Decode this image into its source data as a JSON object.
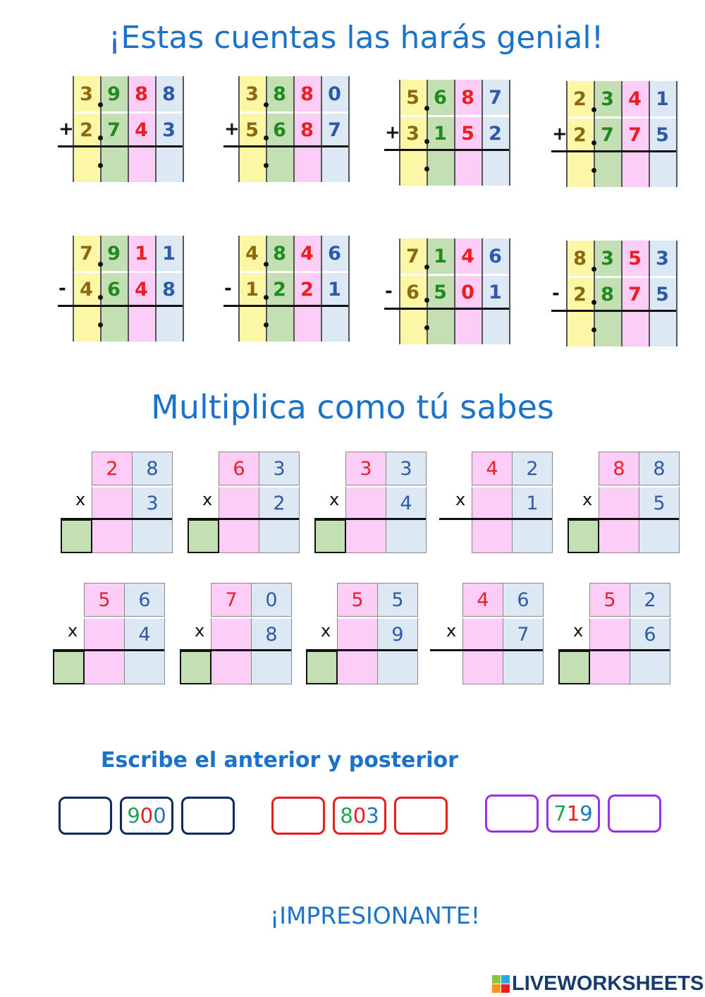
{
  "title": "¡Estas cuentas las harás genial!",
  "colors": {
    "col1_bg": "#fbf7a6",
    "col2_bg": "#c5dfb4",
    "col3_bg": "#fccdf6",
    "col4_bg": "#dde8f5",
    "col1_fg": "#8b6a0c",
    "col2_fg": "#1f8a1f",
    "col3_fg": "#ee1c24",
    "col4_fg": "#2d5aa8",
    "title": "#1a73c9"
  },
  "additions": [
    {
      "op": "+",
      "top": [
        "3",
        "9",
        "8",
        "8"
      ],
      "bottom": [
        "2",
        "7",
        "4",
        "3"
      ]
    },
    {
      "op": "+",
      "top": [
        "3",
        "8",
        "8",
        "0"
      ],
      "bottom": [
        "5",
        "6",
        "8",
        "7"
      ]
    },
    {
      "op": "+",
      "top": [
        "5",
        "6",
        "8",
        "7"
      ],
      "bottom": [
        "3",
        "1",
        "5",
        "2"
      ]
    },
    {
      "op": "+",
      "top": [
        "2",
        "3",
        "4",
        "1"
      ],
      "bottom": [
        "2",
        "7",
        "7",
        "5"
      ]
    },
    {
      "op": "-",
      "top": [
        "7",
        "9",
        "1",
        "1"
      ],
      "bottom": [
        "4",
        "6",
        "4",
        "8"
      ]
    },
    {
      "op": "-",
      "top": [
        "4",
        "8",
        "4",
        "6"
      ],
      "bottom": [
        "1",
        "2",
        "2",
        "1"
      ]
    },
    {
      "op": "-",
      "top": [
        "7",
        "1",
        "4",
        "6"
      ],
      "bottom": [
        "6",
        "5",
        "0",
        "1"
      ]
    },
    {
      "op": "-",
      "top": [
        "8",
        "3",
        "5",
        "3"
      ],
      "bottom": [
        "2",
        "8",
        "7",
        "5"
      ]
    }
  ],
  "mult_title": "Multiplica como tú sabes",
  "multiplications": [
    {
      "op": "x",
      "top": [
        "2",
        "8"
      ],
      "factor": "3",
      "carry_box": true
    },
    {
      "op": "x",
      "top": [
        "6",
        "3"
      ],
      "factor": "2",
      "carry_box": true
    },
    {
      "op": "x",
      "top": [
        "3",
        "3"
      ],
      "factor": "4",
      "carry_box": true
    },
    {
      "op": "x",
      "top": [
        "4",
        "2"
      ],
      "factor": "1",
      "carry_box": false
    },
    {
      "op": "x",
      "top": [
        "8",
        "8"
      ],
      "factor": "5",
      "carry_box": true
    },
    {
      "op": "x",
      "top": [
        "5",
        "6"
      ],
      "factor": "4",
      "carry_box": true
    },
    {
      "op": "x",
      "top": [
        "7",
        "0"
      ],
      "factor": "8",
      "carry_box": true
    },
    {
      "op": "x",
      "top": [
        "5",
        "5"
      ],
      "factor": "9",
      "carry_box": true
    },
    {
      "op": "x",
      "top": [
        "4",
        "6"
      ],
      "factor": "7",
      "carry_box": false
    },
    {
      "op": "x",
      "top": [
        "5",
        "2"
      ],
      "factor": "6",
      "carry_box": true
    }
  ],
  "sequence_title": "Escribe el anterior y posterior",
  "sequences": [
    {
      "number": "900",
      "border": "#0b2a5e",
      "digit_colors": [
        "#1fa35a",
        "#e61e1e",
        "#1c78c0"
      ]
    },
    {
      "number": "803",
      "border": "#e61e1e",
      "digit_colors": [
        "#1fa35a",
        "#e61e1e",
        "#1c78c0"
      ]
    },
    {
      "number": "719",
      "border": "#9b30e8",
      "digit_colors": [
        "#1fa35a",
        "#e61e1e",
        "#1c78c0"
      ]
    }
  ],
  "closing": "¡IMPRESIONANTE!",
  "logo": "LIVEWORKSHEETS"
}
